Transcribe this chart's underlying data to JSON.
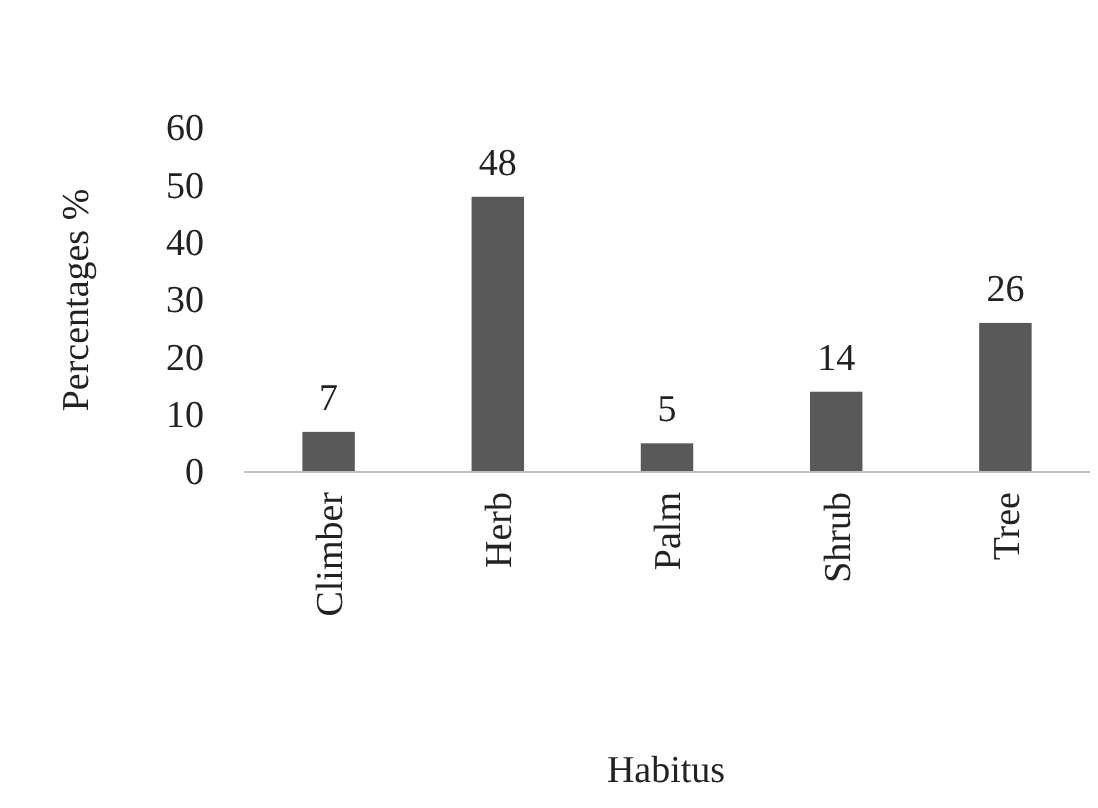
{
  "chart_data": {
    "type": "bar",
    "xlabel": "Habitus",
    "ylabel": "Percentages %",
    "categories": [
      "Climber",
      "Herb",
      "Palm",
      "Shrub",
      "Tree"
    ],
    "values": [
      7,
      48,
      5,
      14,
      26
    ],
    "color": "#595959",
    "ylim": [
      0,
      60
    ],
    "yticks": [
      0,
      10,
      20,
      30,
      40,
      50,
      60
    ],
    "grid": false,
    "data_labels": true
  }
}
